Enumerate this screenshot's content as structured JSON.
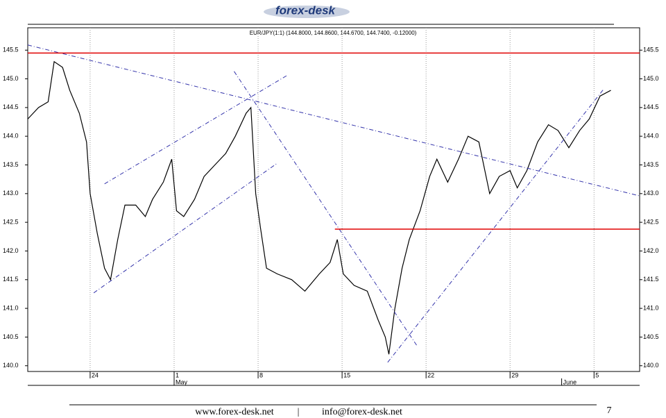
{
  "header": {
    "logo": "forex-desk"
  },
  "chart_data": {
    "type": "line",
    "title": "EUR/JPY(1:1) (144.8000, 144.8600, 144.6700, 144.7400, -0.12000)",
    "x": [
      -5.2,
      -4.3,
      -3.5,
      -3.0,
      -2.3,
      -1.7,
      -0.9,
      -0.3,
      0,
      0.6,
      1.2,
      1.7,
      2.3,
      2.9,
      3.8,
      4.6,
      5.2,
      6.1,
      6.8,
      7.2,
      7.8,
      8.7,
      9.5,
      10.4,
      11.3,
      12.1,
      13.0,
      13.4,
      13.8,
      14.2,
      14.7,
      15.6,
      16.8,
      17.9,
      19.1,
      20.0,
      20.6,
      21.1,
      22.0,
      23.1,
      24.0,
      24.6,
      24.9,
      25.4,
      26.0,
      26.6,
      27.5,
      28.3,
      28.9,
      29.8,
      30.7,
      31.5,
      32.4,
      33.3,
      34.1,
      35.0,
      35.6,
      36.4,
      37.3,
      38.2,
      39.0,
      39.9,
      40.8,
      41.6,
      42.5,
      43.4
    ],
    "series": [
      {
        "name": "EUR/JPY",
        "color": "#000000",
        "values": [
          144.3,
          144.5,
          144.6,
          145.3,
          145.2,
          144.8,
          144.4,
          143.9,
          143.0,
          142.3,
          141.7,
          141.5,
          142.2,
          142.8,
          142.8,
          142.6,
          142.9,
          143.2,
          143.6,
          142.7,
          142.6,
          142.9,
          143.3,
          143.5,
          143.7,
          144.0,
          144.4,
          144.5,
          143.0,
          142.4,
          141.7,
          141.6,
          141.5,
          141.3,
          141.6,
          141.8,
          142.2,
          141.6,
          141.4,
          141.3,
          140.8,
          140.5,
          140.2,
          141.0,
          141.7,
          142.2,
          142.7,
          143.3,
          143.6,
          143.2,
          143.6,
          144.0,
          143.9,
          143.0,
          143.3,
          143.4,
          143.1,
          143.4,
          143.9,
          144.2,
          144.1,
          143.8,
          144.1,
          144.3,
          144.7,
          144.8
        ]
      }
    ],
    "xlim": [
      -5.2,
      45.8
    ],
    "ylim": [
      139.9,
      145.89
    ],
    "xticks": [
      {
        "value": 0,
        "label": "24"
      },
      {
        "value": 7,
        "label": "1"
      },
      {
        "value": 14,
        "label": "8"
      },
      {
        "value": 21,
        "label": "15"
      },
      {
        "value": 28,
        "label": "22"
      },
      {
        "value": 35,
        "label": "29"
      },
      {
        "value": 42,
        "label": "5"
      }
    ],
    "month_ticks": [
      {
        "value": 7,
        "label": "May"
      },
      {
        "value": 39.3,
        "label": "June"
      }
    ],
    "yticks": [
      {
        "value": 140,
        "label": "140.0"
      },
      {
        "value": 140.5,
        "label": "140.5"
      },
      {
        "value": 141,
        "label": "141.0"
      },
      {
        "value": 141.5,
        "label": "141.5"
      },
      {
        "value": 142,
        "label": "142.0"
      },
      {
        "value": 142.5,
        "label": "142.5"
      },
      {
        "value": 143,
        "label": "143.0"
      },
      {
        "value": 143.5,
        "label": "143.5"
      },
      {
        "value": 144,
        "label": "144.0"
      },
      {
        "value": 144.5,
        "label": "144.5"
      },
      {
        "value": 145,
        "label": "145.0"
      },
      {
        "value": 145.5,
        "label": "145.5"
      }
    ],
    "grid": true,
    "levels": [
      {
        "x": [
          -5.2,
          45.8
        ],
        "y": [
          145.45,
          145.45
        ],
        "color": "#e00000"
      },
      {
        "x": [
          20.4,
          45.8
        ],
        "y": [
          142.38,
          142.38
        ],
        "color": "#e00000"
      }
    ],
    "trendlines": [
      {
        "x": [
          -5.2,
          45.8
        ],
        "y": [
          145.59,
          142.96
        ],
        "color": "#3333aa"
      },
      {
        "x": [
          1.2,
          16.5
        ],
        "y": [
          143.17,
          145.07
        ],
        "color": "#3333aa"
      },
      {
        "x": [
          0.3,
          15.6
        ],
        "y": [
          141.27,
          143.53
        ],
        "color": "#3333aa"
      },
      {
        "x": [
          12.0,
          27.3
        ],
        "y": [
          145.13,
          140.33
        ],
        "color": "#3333aa"
      },
      {
        "x": [
          24.8,
          42.8
        ],
        "y": [
          140.06,
          144.82
        ],
        "color": "#3333aa"
      }
    ]
  },
  "footer": {
    "website": "www.forex-desk.net",
    "separator": "|",
    "email": "info@forex-desk.net",
    "page": "7"
  }
}
